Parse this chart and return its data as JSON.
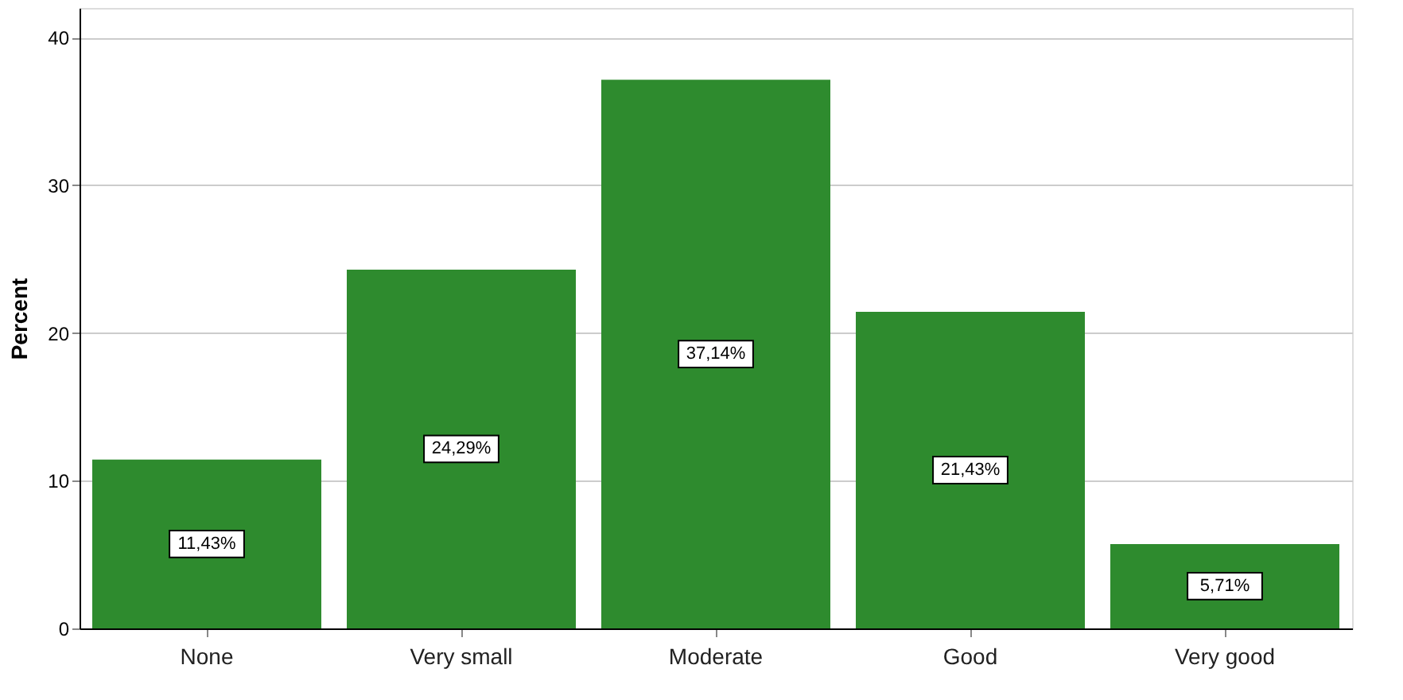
{
  "chart_data": {
    "type": "bar",
    "ylabel": "Percent",
    "categories": [
      "None",
      "Very small",
      "Moderate",
      "Good",
      "Very good"
    ],
    "values": [
      11.43,
      24.29,
      37.14,
      21.43,
      5.71
    ],
    "value_labels": [
      "11,43%",
      "24,29%",
      "37,14%",
      "21,43%",
      "5,71%"
    ],
    "color": "#2e8b2e",
    "ylim": [
      0,
      42
    ],
    "yticks": [
      0,
      10,
      20,
      30,
      40
    ],
    "grid": "y"
  }
}
